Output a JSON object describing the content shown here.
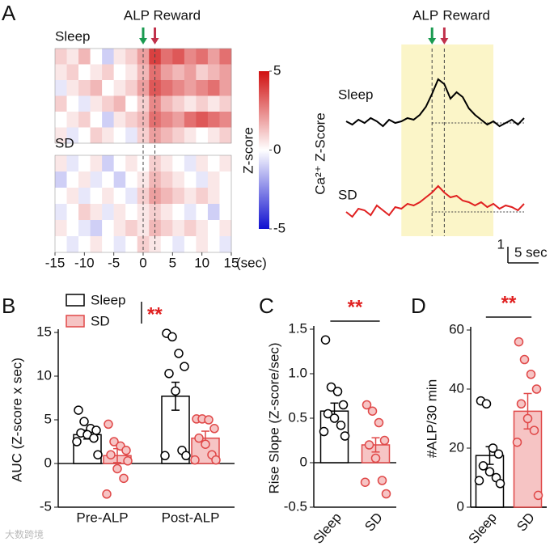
{
  "chart_data": [
    {
      "type": "heatmap",
      "panel": "A",
      "markers": [
        "ALP",
        "Reward"
      ],
      "marker_x": [
        0,
        2
      ],
      "marker_colors": [
        "#1a9a50",
        "#c0304a"
      ],
      "xlim": [
        -15,
        15
      ],
      "xticks": [
        -15,
        -10,
        -5,
        0,
        5,
        10,
        15
      ],
      "xlabel": "(sec)",
      "colorbar": {
        "label": "Z-score",
        "lim": [
          -5,
          5
        ],
        "ticks": [
          5,
          0,
          -5
        ],
        "colors": [
          "#1010d0",
          "#ffffff",
          "#d01010"
        ]
      },
      "maps": [
        {
          "name": "Sleep",
          "rows": [
            [
              1,
              0.5,
              1.5,
              0,
              -1,
              0.5,
              1,
              2,
              4,
              3,
              3.5,
              2.5,
              3,
              2,
              3
            ],
            [
              0.5,
              1,
              0,
              0.5,
              1,
              0,
              0.5,
              1.5,
              3,
              2,
              1.5,
              2,
              1,
              1.5,
              2
            ],
            [
              -0.5,
              0.5,
              1,
              1.5,
              0,
              0.5,
              1,
              2,
              3.5,
              3,
              2.5,
              2,
              2.5,
              3,
              2
            ],
            [
              1,
              0,
              -0.5,
              0.5,
              1,
              1.5,
              0,
              1,
              2.5,
              1.5,
              1,
              0.5,
              1,
              0.5,
              1
            ],
            [
              0,
              0.5,
              1,
              0,
              -1,
              0.5,
              1,
              1.5,
              3,
              2.5,
              2,
              3,
              3.5,
              3,
              2.5
            ],
            [
              0.5,
              -0.5,
              0,
              1,
              0.5,
              0,
              -0.5,
              1,
              2,
              1.5,
              1,
              0.5,
              0,
              0.5,
              1
            ]
          ]
        },
        {
          "name": "SD",
          "rows": [
            [
              0.5,
              -0.5,
              0,
              0.5,
              -1,
              0,
              0.5,
              0,
              1,
              0.5,
              0,
              -0.5,
              0.5,
              0,
              0.5
            ],
            [
              -1,
              0,
              0.5,
              -0.5,
              0,
              -1,
              0,
              0.5,
              1.5,
              1,
              0.5,
              0,
              -0.5,
              0.5,
              0
            ],
            [
              0,
              0.5,
              -0.5,
              0,
              0.5,
              0,
              -0.5,
              1,
              2,
              1.5,
              1,
              0.5,
              1,
              0.5,
              0
            ],
            [
              -0.5,
              0,
              1,
              0.5,
              -0.5,
              0.5,
              0,
              0.5,
              1,
              0.5,
              0,
              -0.5,
              0,
              -1,
              0
            ],
            [
              0.5,
              0,
              -0.5,
              -1,
              0,
              0.5,
              1,
              0.5,
              1.5,
              1,
              0.5,
              1,
              0.5,
              0,
              0.5
            ],
            [
              0,
              -0.5,
              0,
              0.5,
              0,
              -0.5,
              0,
              1,
              0.5,
              0,
              -0.5,
              0,
              0.5,
              0,
              -0.5
            ]
          ]
        }
      ]
    },
    {
      "type": "line",
      "ylabel": "Ca²⁺ Z-Score",
      "markers": [
        "ALP",
        "Reward"
      ],
      "marker_x": [
        0,
        2
      ],
      "marker_colors": [
        "#1a9a50",
        "#c0304a"
      ],
      "highlight": [
        -5,
        10
      ],
      "highlight_color": "#fbf5c8",
      "xlim": [
        -14,
        15
      ],
      "ylim": [
        -1,
        3
      ],
      "x": [
        -14,
        -13,
        -12,
        -11,
        -10,
        -9,
        -8,
        -7,
        -6,
        -5,
        -4,
        -3,
        -2,
        -1,
        0,
        1,
        2,
        3,
        4,
        5,
        6,
        7,
        8,
        9,
        10,
        11,
        12,
        13,
        14,
        15
      ],
      "series": [
        {
          "name": "Sleep",
          "color": "#000000",
          "values": [
            0.1,
            -0.1,
            0.2,
            0.0,
            0.3,
            0.1,
            -0.2,
            0.2,
            0.0,
            0.1,
            0.3,
            0.2,
            0.5,
            1.0,
            1.8,
            2.7,
            2.4,
            1.5,
            1.9,
            1.6,
            0.9,
            0.5,
            0.2,
            -0.1,
            0.1,
            -0.2,
            0.0,
            0.2,
            -0.1,
            0.3
          ]
        },
        {
          "name": "SD",
          "color": "#e02020",
          "values": [
            0.0,
            -0.3,
            0.2,
            0.1,
            -0.2,
            0.4,
            0.1,
            -0.2,
            0.3,
            0.2,
            0.5,
            0.4,
            0.6,
            0.9,
            1.2,
            1.6,
            1.2,
            0.9,
            1.0,
            0.7,
            0.6,
            0.4,
            0.6,
            0.3,
            0.5,
            0.2,
            0.4,
            0.3,
            0.1,
            0.5
          ]
        }
      ],
      "scalebar": {
        "y": 1,
        "x": 5,
        "x_label": "5 sec"
      }
    },
    {
      "type": "bar",
      "panel": "B",
      "ylabel": "AUC (Z-score x sec)",
      "categories": [
        "Pre-ALP",
        "Post-ALP"
      ],
      "ylim": [
        -5,
        15
      ],
      "yticks": [
        -5,
        0,
        5,
        10,
        15
      ],
      "significance": "**",
      "series": [
        {
          "name": "Sleep",
          "color": "#ffffff",
          "edgecolor": "#000000",
          "values": [
            3.3,
            7.7
          ],
          "errors": [
            0.5,
            1.6
          ],
          "points": [
            [
              6.1,
              4.8,
              4.0,
              3.8,
              3.5,
              3.3,
              2.9,
              2.5,
              1.0
            ],
            [
              14.9,
              14.5,
              12.6,
              11.1,
              10.3,
              8.3,
              1.5,
              0.9,
              0.9
            ]
          ]
        },
        {
          "name": "SD",
          "color": "#f6c4c4",
          "edgecolor": "#e04848",
          "values": [
            0.9,
            2.9
          ],
          "errors": [
            0.8,
            0.8
          ],
          "points": [
            [
              4.5,
              2.5,
              2.0,
              1.5,
              1.0,
              -0.6,
              -1.7,
              -3.5,
              0.3
            ],
            [
              5.1,
              5.1,
              5.0,
              4.0,
              2.9,
              2.2,
              1.0,
              0.4,
              0.4
            ]
          ]
        }
      ]
    },
    {
      "type": "bar",
      "panel": "C",
      "ylabel": "Rise Slope (Z-score/sec)",
      "categories": [
        "Sleep",
        "SD"
      ],
      "ylim": [
        -0.5,
        1.5
      ],
      "yticks": [
        -0.5,
        0,
        0.5,
        {
          "value": 1,
          "label": "1.0"
        },
        1.5
      ],
      "significance": "**",
      "values": [
        0.58,
        0.2
      ],
      "errors": [
        0.09,
        0.08
      ],
      "colors": [
        "#ffffff",
        "#f6c4c4"
      ],
      "edgecolors": [
        "#000000",
        "#e04848"
      ],
      "points": [
        [
          1.38,
          0.85,
          0.8,
          0.65,
          0.55,
          0.5,
          0.42,
          0.35,
          0.3
        ],
        [
          0.65,
          0.58,
          0.45,
          0.25,
          0.2,
          0.05,
          -0.2,
          -0.22,
          -0.35
        ]
      ]
    },
    {
      "type": "bar",
      "panel": "D",
      "ylabel": "#ALP/30 min",
      "categories": [
        "Sleep",
        "SD"
      ],
      "ylim": [
        0,
        60
      ],
      "yticks": [
        0,
        20,
        40,
        60
      ],
      "significance": "**",
      "values": [
        17.5,
        32.5
      ],
      "errors": [
        3,
        6
      ],
      "colors": [
        "#ffffff",
        "#f6c4c4"
      ],
      "edgecolors": [
        "#000000",
        "#e04848"
      ],
      "points": [
        [
          36,
          35,
          20,
          18,
          14,
          12,
          10,
          9,
          8
        ],
        [
          56,
          50,
          45,
          40,
          35,
          30,
          26,
          22,
          4
        ]
      ]
    }
  ],
  "watermark": "大数跨境"
}
